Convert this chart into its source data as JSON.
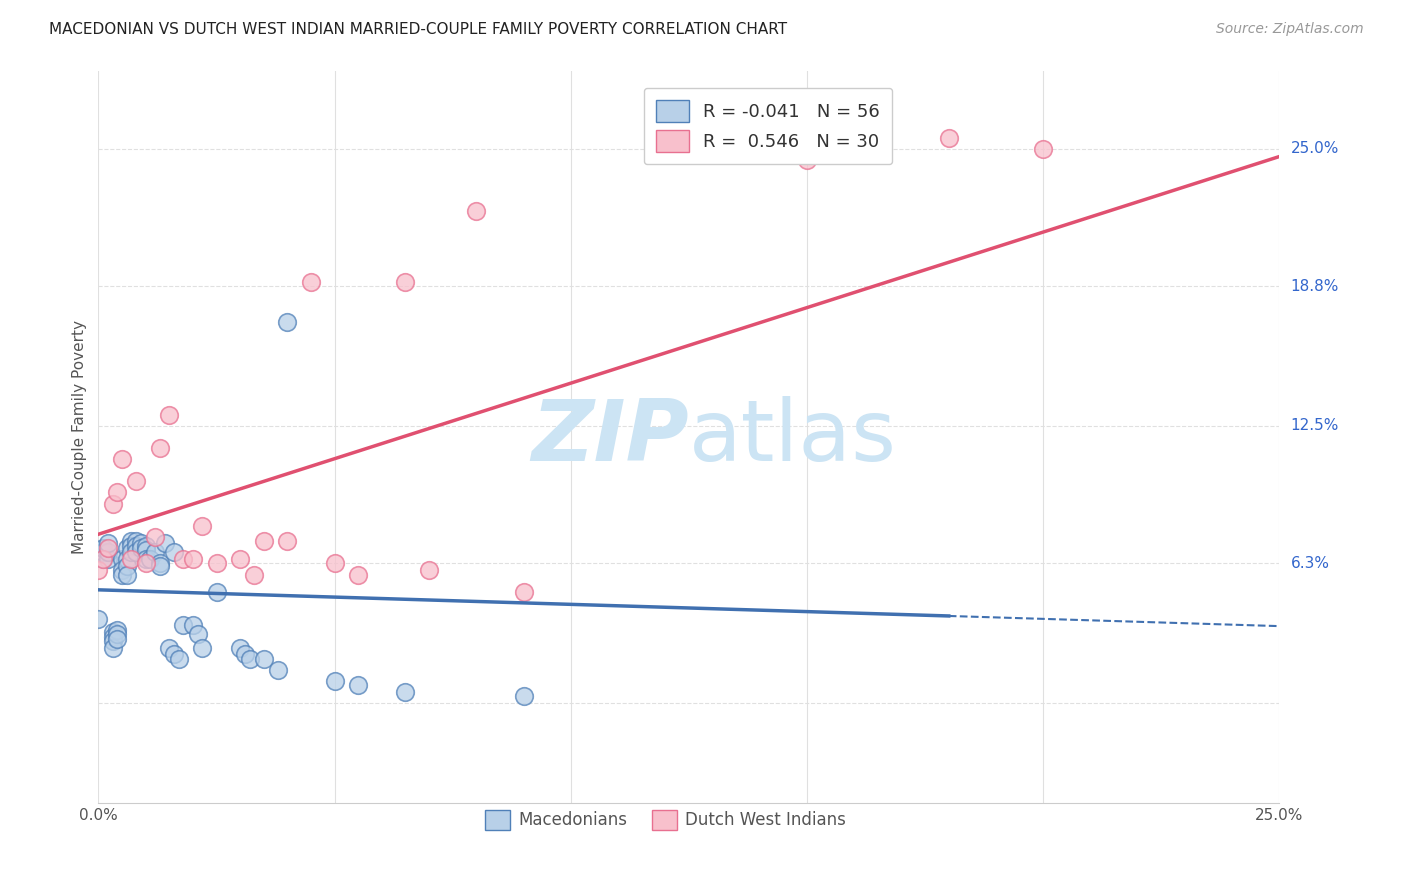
{
  "title": "MACEDONIAN VS DUTCH WEST INDIAN MARRIED-COUPLE FAMILY POVERTY CORRELATION CHART",
  "source": "Source: ZipAtlas.com",
  "ylabel": "Married-Couple Family Poverty",
  "xlim": [
    0.0,
    0.25
  ],
  "ylim": [
    -0.045,
    0.285
  ],
  "legend_macedonian_R": "-0.041",
  "legend_macedonian_N": "56",
  "legend_dutch_R": "0.546",
  "legend_dutch_N": "30",
  "macedonian_color": "#b8d0e8",
  "dutch_color": "#f8c0cc",
  "macedonian_edge_color": "#5080b8",
  "dutch_edge_color": "#e87090",
  "macedonian_line_color": "#4070b0",
  "dutch_line_color": "#e05070",
  "watermark_color": "#cce4f4",
  "background_color": "#ffffff",
  "grid_color": "#e0e0e0",
  "grid_dash": [
    4,
    4
  ],
  "right_label_color": "#3366cc",
  "ytick_labels_right": [
    "25.0%",
    "18.8%",
    "12.5%",
    "6.3%"
  ],
  "ytick_vals_right": [
    0.25,
    0.188,
    0.125,
    0.063
  ],
  "mac_x": [
    0.0,
    0.001,
    0.001,
    0.001,
    0.002,
    0.002,
    0.002,
    0.003,
    0.003,
    0.003,
    0.003,
    0.004,
    0.004,
    0.004,
    0.005,
    0.005,
    0.005,
    0.006,
    0.006,
    0.006,
    0.006,
    0.007,
    0.007,
    0.007,
    0.008,
    0.008,
    0.008,
    0.009,
    0.009,
    0.01,
    0.01,
    0.01,
    0.011,
    0.012,
    0.013,
    0.013,
    0.014,
    0.015,
    0.016,
    0.016,
    0.017,
    0.018,
    0.02,
    0.021,
    0.022,
    0.025,
    0.03,
    0.031,
    0.032,
    0.035,
    0.038,
    0.04,
    0.05,
    0.055,
    0.065,
    0.09
  ],
  "mac_y": [
    0.038,
    0.065,
    0.068,
    0.07,
    0.065,
    0.068,
    0.072,
    0.032,
    0.03,
    0.028,
    0.025,
    0.033,
    0.031,
    0.029,
    0.065,
    0.06,
    0.058,
    0.07,
    0.065,
    0.062,
    0.058,
    0.073,
    0.071,
    0.068,
    0.073,
    0.071,
    0.068,
    0.072,
    0.07,
    0.071,
    0.069,
    0.065,
    0.065,
    0.068,
    0.063,
    0.062,
    0.072,
    0.025,
    0.022,
    0.068,
    0.02,
    0.035,
    0.035,
    0.031,
    0.025,
    0.05,
    0.025,
    0.022,
    0.02,
    0.02,
    0.015,
    0.172,
    0.01,
    0.008,
    0.005,
    0.003
  ],
  "dutch_x": [
    0.0,
    0.001,
    0.002,
    0.003,
    0.004,
    0.005,
    0.007,
    0.008,
    0.01,
    0.012,
    0.013,
    0.015,
    0.018,
    0.02,
    0.022,
    0.025,
    0.03,
    0.033,
    0.035,
    0.04,
    0.045,
    0.05,
    0.055,
    0.065,
    0.07,
    0.08,
    0.09,
    0.15,
    0.18,
    0.2
  ],
  "dutch_y": [
    0.06,
    0.065,
    0.07,
    0.09,
    0.095,
    0.11,
    0.065,
    0.1,
    0.063,
    0.075,
    0.115,
    0.13,
    0.065,
    0.065,
    0.08,
    0.063,
    0.065,
    0.058,
    0.073,
    0.073,
    0.19,
    0.063,
    0.058,
    0.19,
    0.06,
    0.222,
    0.05,
    0.245,
    0.255,
    0.25
  ]
}
